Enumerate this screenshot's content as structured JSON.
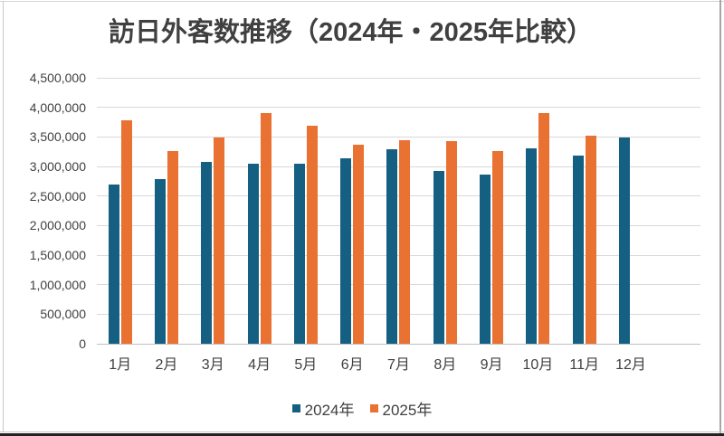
{
  "chart_data": {
    "type": "bar",
    "title": "訪日外客数推移（2024年・2025年比較）",
    "categories": [
      "1月",
      "2月",
      "3月",
      "4月",
      "5月",
      "6月",
      "7月",
      "8月",
      "9月",
      "10月",
      "11月",
      "12月"
    ],
    "series": [
      {
        "name": "2024年",
        "color": "#156082",
        "values": [
          2690000,
          2790000,
          3080000,
          3040000,
          3040000,
          3140000,
          3290000,
          2930000,
          2870000,
          3310000,
          3180000,
          3490000
        ]
      },
      {
        "name": "2025年",
        "color": "#E97132",
        "values": [
          3780000,
          3260000,
          3490000,
          3910000,
          3690000,
          3370000,
          3440000,
          3430000,
          3260000,
          3900000,
          3520000,
          null
        ]
      }
    ],
    "xlabel": "",
    "ylabel": "",
    "ylim": [
      0,
      4500000
    ],
    "ytick_step": 500000,
    "ytick_labels": [
      "0",
      "500,000",
      "1,000,000",
      "1,500,000",
      "2,000,000",
      "2,500,000",
      "3,000,000",
      "3,500,000",
      "4,000,000",
      "4,500,000"
    ],
    "grid": true,
    "legend_position": "bottom",
    "trailing_empty_categories": 1,
    "colors": {
      "gridline": "#D9D9D9",
      "axis_line": "#BFBFBF",
      "text": "#404040",
      "background": "#FFFFFF"
    }
  }
}
